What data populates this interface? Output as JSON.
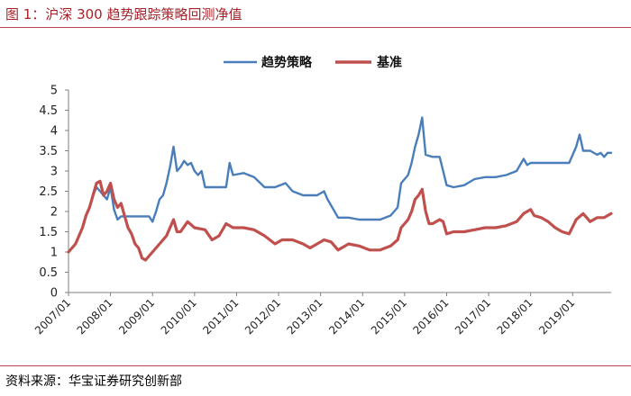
{
  "figure": {
    "title": "图 1：沪深 300 趋势跟踪策略回测净值",
    "source": "资料来源：华宝证券研究创新部"
  },
  "chart_data": {
    "type": "line",
    "title": "",
    "xlabel": "",
    "ylabel": "",
    "ylim": [
      0,
      5
    ],
    "yticks": [
      "0",
      "0.5",
      "1",
      "1.5",
      "2",
      "2.5",
      "3",
      "3.5",
      "4",
      "4.5",
      "5"
    ],
    "xticks": [
      "2007/01",
      "2008/01",
      "2009/01",
      "2010/01",
      "2011/01",
      "2012/01",
      "2013/01",
      "2014/01",
      "2015/01",
      "2016/01",
      "2017/01",
      "2018/01",
      "2019/01"
    ],
    "legend_position": "top-center",
    "grid": false,
    "series": [
      {
        "name": "趋势策略",
        "color": "#4a7ebb",
        "points": [
          [
            "2007/01",
            1.0
          ],
          [
            "2007/03",
            1.2
          ],
          [
            "2007/05",
            1.6
          ],
          [
            "2007/06",
            1.9
          ],
          [
            "2007/07",
            2.1
          ],
          [
            "2007/08",
            2.4
          ],
          [
            "2007/09",
            2.6
          ],
          [
            "2007/10",
            2.5
          ],
          [
            "2007/11",
            2.4
          ],
          [
            "2007/12",
            2.3
          ],
          [
            "2008/01",
            2.6
          ],
          [
            "2008/02",
            2.05
          ],
          [
            "2008/03",
            1.8
          ],
          [
            "2008/04",
            1.88
          ],
          [
            "2008/06",
            1.88
          ],
          [
            "2008/09",
            1.88
          ],
          [
            "2008/12",
            1.88
          ],
          [
            "2009/01",
            1.75
          ],
          [
            "2009/02",
            2.0
          ],
          [
            "2009/03",
            2.3
          ],
          [
            "2009/04",
            2.4
          ],
          [
            "2009/05",
            2.7
          ],
          [
            "2009/06",
            3.1
          ],
          [
            "2009/07",
            3.6
          ],
          [
            "2009/08",
            3.0
          ],
          [
            "2009/09",
            3.1
          ],
          [
            "2009/10",
            3.25
          ],
          [
            "2009/11",
            3.15
          ],
          [
            "2009/12",
            3.2
          ],
          [
            "2010/01",
            3.0
          ],
          [
            "2010/02",
            2.9
          ],
          [
            "2010/03",
            3.0
          ],
          [
            "2010/04",
            2.6
          ],
          [
            "2010/07",
            2.6
          ],
          [
            "2010/10",
            2.6
          ],
          [
            "2010/11",
            3.2
          ],
          [
            "2010/12",
            2.9
          ],
          [
            "2011/03",
            2.95
          ],
          [
            "2011/06",
            2.85
          ],
          [
            "2011/09",
            2.6
          ],
          [
            "2011/12",
            2.6
          ],
          [
            "2012/03",
            2.7
          ],
          [
            "2012/05",
            2.5
          ],
          [
            "2012/08",
            2.4
          ],
          [
            "2012/12",
            2.4
          ],
          [
            "2013/02",
            2.5
          ],
          [
            "2013/03",
            2.3
          ],
          [
            "2013/06",
            1.85
          ],
          [
            "2013/09",
            1.85
          ],
          [
            "2013/12",
            1.8
          ],
          [
            "2014/03",
            1.8
          ],
          [
            "2014/06",
            1.8
          ],
          [
            "2014/09",
            1.9
          ],
          [
            "2014/11",
            2.1
          ],
          [
            "2014/12",
            2.7
          ],
          [
            "2015/02",
            2.9
          ],
          [
            "2015/03",
            3.2
          ],
          [
            "2015/04",
            3.6
          ],
          [
            "2015/05",
            3.9
          ],
          [
            "2015/06",
            4.32
          ],
          [
            "2015/07",
            3.4
          ],
          [
            "2015/09",
            3.35
          ],
          [
            "2015/11",
            3.35
          ],
          [
            "2015/12",
            3.0
          ],
          [
            "2016/01",
            2.65
          ],
          [
            "2016/03",
            2.6
          ],
          [
            "2016/06",
            2.65
          ],
          [
            "2016/09",
            2.8
          ],
          [
            "2016/12",
            2.85
          ],
          [
            "2017/03",
            2.85
          ],
          [
            "2017/06",
            2.9
          ],
          [
            "2017/09",
            3.0
          ],
          [
            "2017/11",
            3.3
          ],
          [
            "2017/12",
            3.15
          ],
          [
            "2018/01",
            3.2
          ],
          [
            "2018/04",
            3.2
          ],
          [
            "2018/08",
            3.2
          ],
          [
            "2018/12",
            3.2
          ],
          [
            "2019/02",
            3.6
          ],
          [
            "2019/03",
            3.9
          ],
          [
            "2019/04",
            3.5
          ],
          [
            "2019/06",
            3.5
          ],
          [
            "2019/08",
            3.4
          ],
          [
            "2019/09",
            3.45
          ],
          [
            "2019/10",
            3.35
          ],
          [
            "2019/11",
            3.45
          ],
          [
            "2019/12",
            3.45
          ]
        ]
      },
      {
        "name": "基准",
        "color": "#c0504d",
        "points": [
          [
            "2007/01",
            1.0
          ],
          [
            "2007/03",
            1.2
          ],
          [
            "2007/05",
            1.6
          ],
          [
            "2007/06",
            1.9
          ],
          [
            "2007/07",
            2.1
          ],
          [
            "2007/08",
            2.4
          ],
          [
            "2007/09",
            2.7
          ],
          [
            "2007/10",
            2.75
          ],
          [
            "2007/11",
            2.4
          ],
          [
            "2007/12",
            2.5
          ],
          [
            "2008/01",
            2.7
          ],
          [
            "2008/02",
            2.3
          ],
          [
            "2008/03",
            2.1
          ],
          [
            "2008/04",
            2.2
          ],
          [
            "2008/05",
            1.9
          ],
          [
            "2008/06",
            1.6
          ],
          [
            "2008/07",
            1.45
          ],
          [
            "2008/08",
            1.2
          ],
          [
            "2008/09",
            1.1
          ],
          [
            "2008/10",
            0.85
          ],
          [
            "2008/11",
            0.8
          ],
          [
            "2008/12",
            0.9
          ],
          [
            "2009/01",
            1.0
          ],
          [
            "2009/03",
            1.2
          ],
          [
            "2009/05",
            1.4
          ],
          [
            "2009/07",
            1.8
          ],
          [
            "2009/08",
            1.5
          ],
          [
            "2009/09",
            1.5
          ],
          [
            "2009/11",
            1.75
          ],
          [
            "2010/01",
            1.6
          ],
          [
            "2010/04",
            1.55
          ],
          [
            "2010/06",
            1.3
          ],
          [
            "2010/08",
            1.4
          ],
          [
            "2010/10",
            1.7
          ],
          [
            "2010/12",
            1.6
          ],
          [
            "2011/03",
            1.6
          ],
          [
            "2011/06",
            1.55
          ],
          [
            "2011/09",
            1.4
          ],
          [
            "2011/12",
            1.2
          ],
          [
            "2012/02",
            1.3
          ],
          [
            "2012/05",
            1.3
          ],
          [
            "2012/08",
            1.2
          ],
          [
            "2012/10",
            1.1
          ],
          [
            "2012/12",
            1.2
          ],
          [
            "2013/02",
            1.3
          ],
          [
            "2013/04",
            1.25
          ],
          [
            "2013/06",
            1.05
          ],
          [
            "2013/09",
            1.2
          ],
          [
            "2013/12",
            1.15
          ],
          [
            "2014/03",
            1.05
          ],
          [
            "2014/06",
            1.05
          ],
          [
            "2014/09",
            1.15
          ],
          [
            "2014/11",
            1.3
          ],
          [
            "2014/12",
            1.6
          ],
          [
            "2015/02",
            1.8
          ],
          [
            "2015/03",
            2.0
          ],
          [
            "2015/04",
            2.3
          ],
          [
            "2015/05",
            2.4
          ],
          [
            "2015/06",
            2.55
          ],
          [
            "2015/07",
            2.0
          ],
          [
            "2015/08",
            1.7
          ],
          [
            "2015/09",
            1.7
          ],
          [
            "2015/10",
            1.75
          ],
          [
            "2015/11",
            1.8
          ],
          [
            "2015/12",
            1.75
          ],
          [
            "2016/01",
            1.45
          ],
          [
            "2016/03",
            1.5
          ],
          [
            "2016/06",
            1.5
          ],
          [
            "2016/09",
            1.55
          ],
          [
            "2016/12",
            1.6
          ],
          [
            "2017/03",
            1.6
          ],
          [
            "2017/06",
            1.65
          ],
          [
            "2017/09",
            1.75
          ],
          [
            "2017/11",
            1.95
          ],
          [
            "2018/01",
            2.05
          ],
          [
            "2018/02",
            1.9
          ],
          [
            "2018/04",
            1.85
          ],
          [
            "2018/06",
            1.75
          ],
          [
            "2018/08",
            1.6
          ],
          [
            "2018/10",
            1.5
          ],
          [
            "2018/12",
            1.45
          ],
          [
            "2019/02",
            1.8
          ],
          [
            "2019/04",
            1.95
          ],
          [
            "2019/06",
            1.75
          ],
          [
            "2019/08",
            1.85
          ],
          [
            "2019/10",
            1.85
          ],
          [
            "2019/12",
            1.95
          ]
        ]
      }
    ]
  }
}
